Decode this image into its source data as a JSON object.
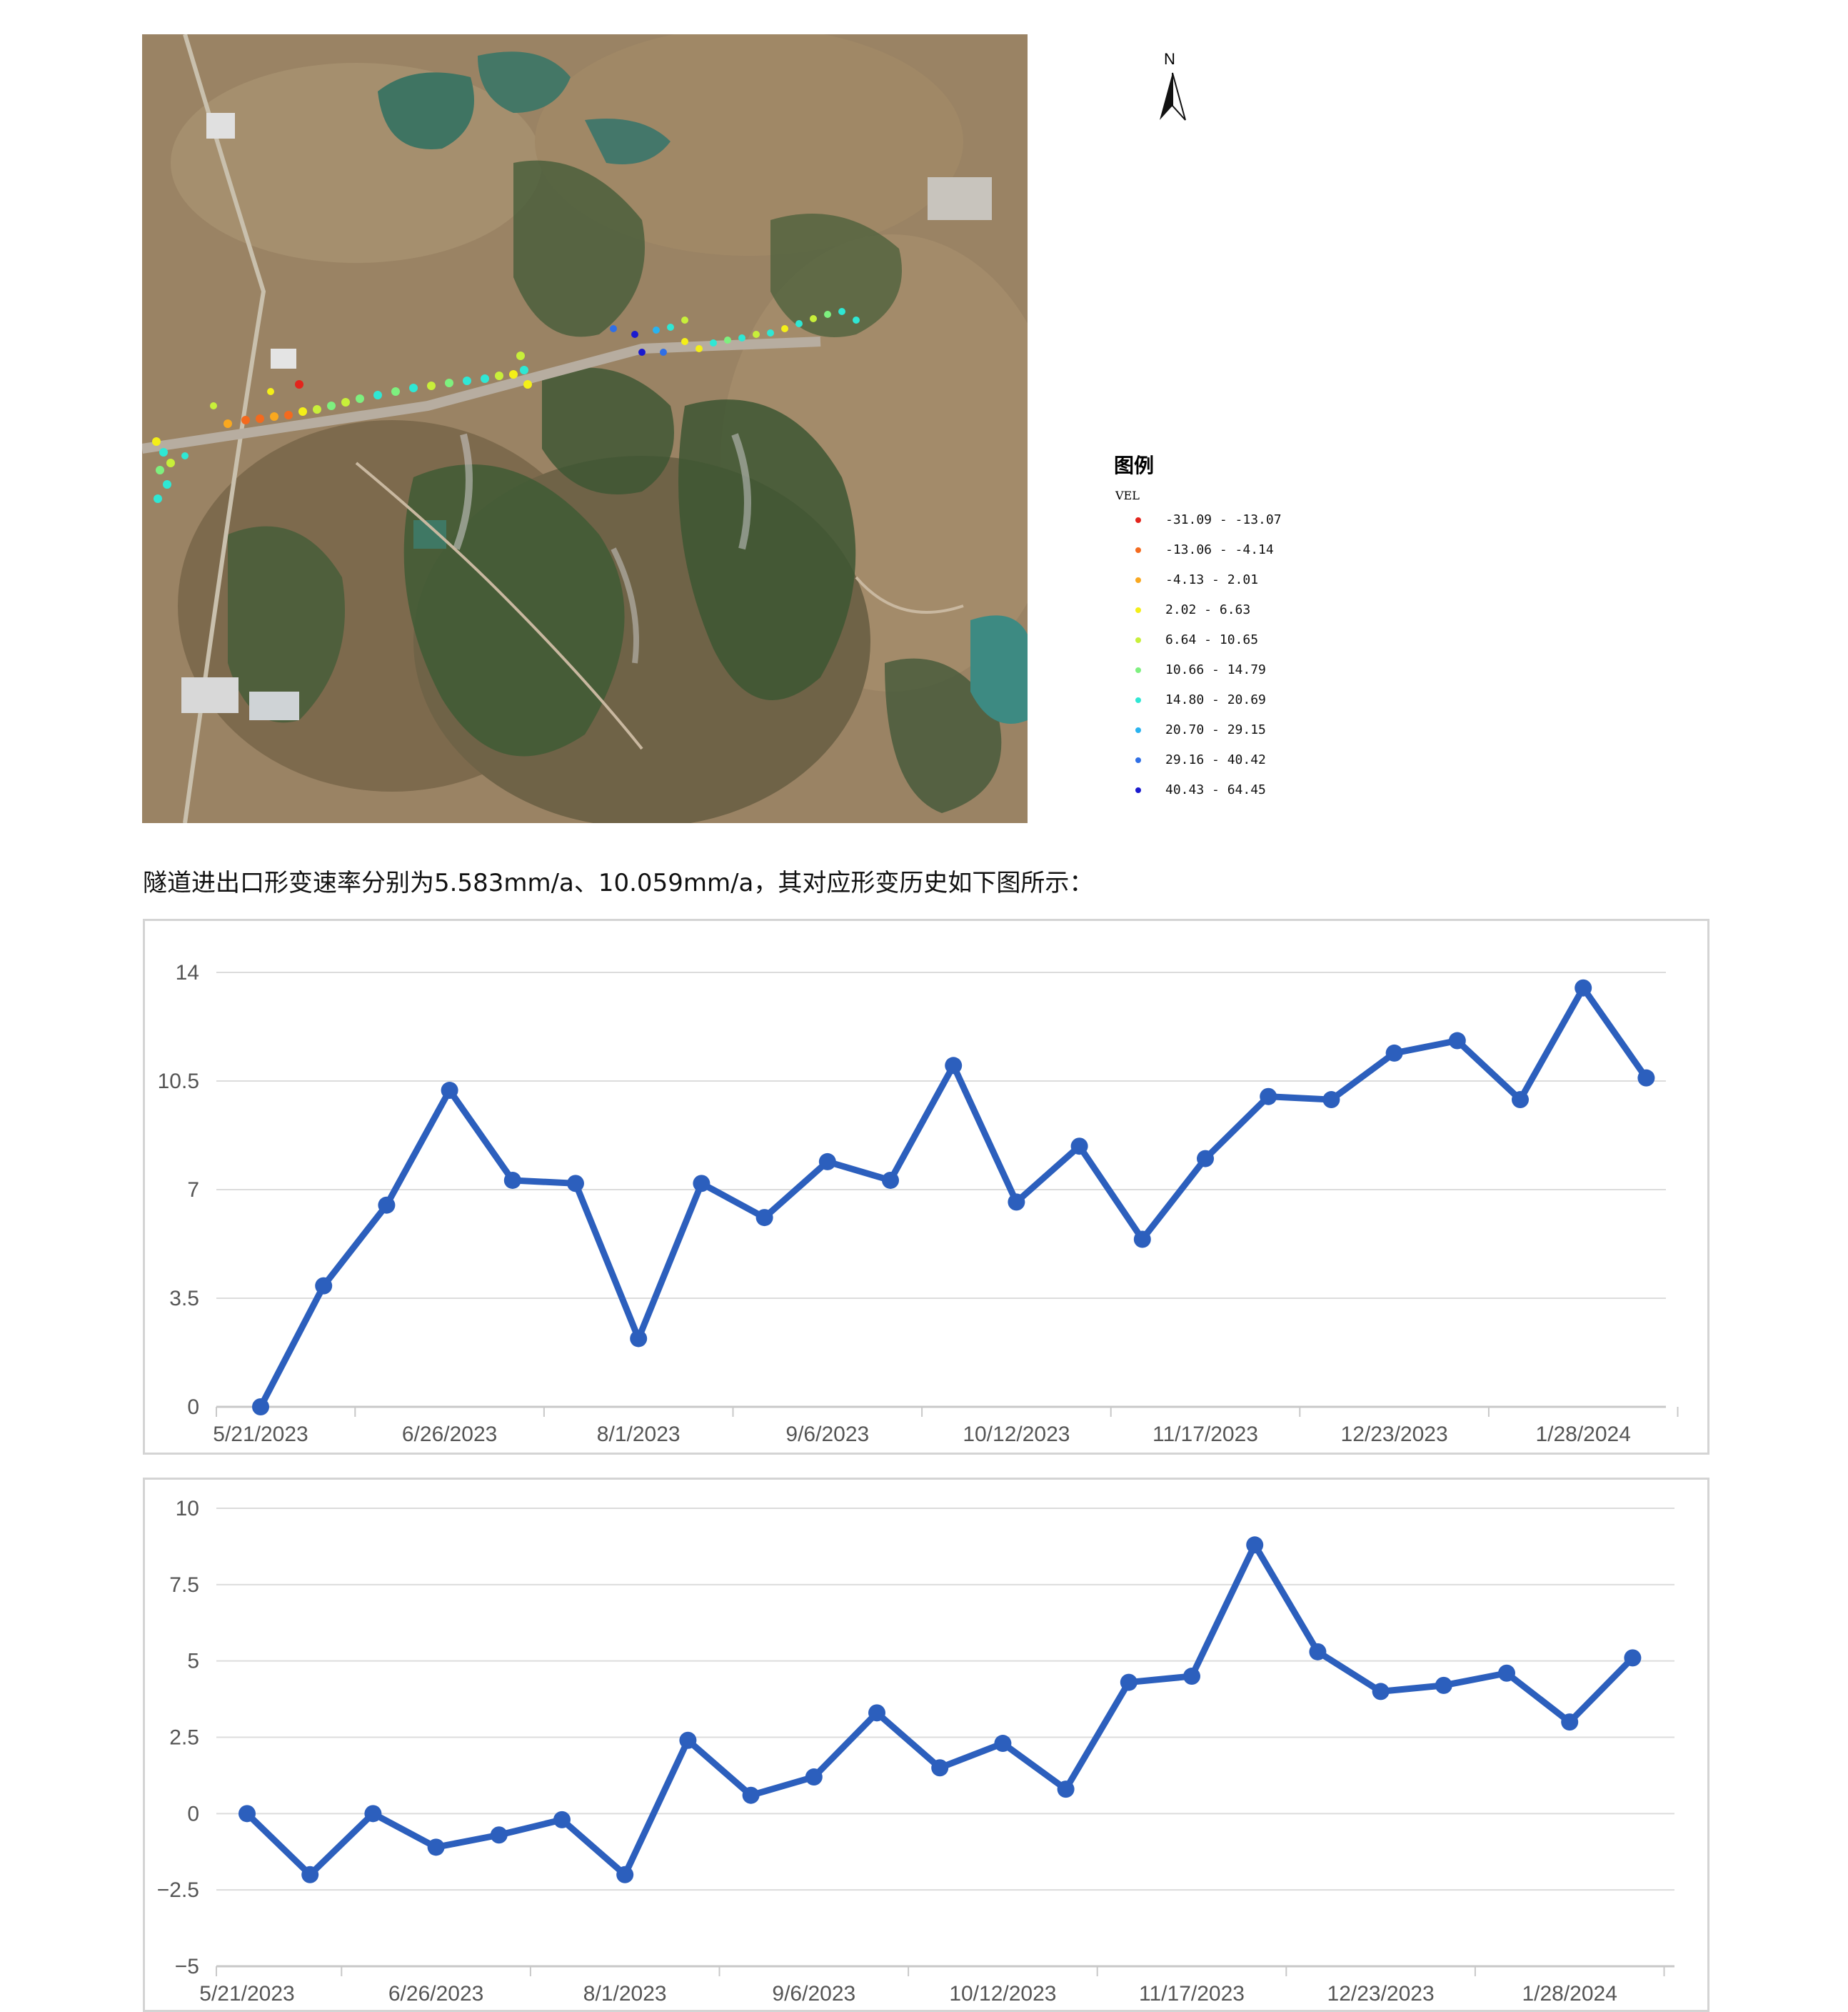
{
  "compass": {
    "north_label": "N"
  },
  "legend": {
    "title": "图例",
    "field": "VEL",
    "items": [
      {
        "label": "-31.09 - -13.07",
        "color": "#e3241c"
      },
      {
        "label": "-13.06 - -4.14",
        "color": "#f46a1e"
      },
      {
        "label": "-4.13 - 2.01",
        "color": "#f9a81f"
      },
      {
        "label": "2.02 - 6.63",
        "color": "#f4ef18"
      },
      {
        "label": "6.64 - 10.65",
        "color": "#c8ef3a"
      },
      {
        "label": "10.66 - 14.79",
        "color": "#7ef07f"
      },
      {
        "label": "14.80 - 20.69",
        "color": "#2fe7d4"
      },
      {
        "label": "20.70 - 29.15",
        "color": "#29b3f0"
      },
      {
        "label": "29.16 - 40.42",
        "color": "#2f6fe6"
      },
      {
        "label": "40.43 - 64.45",
        "color": "#1a1acf"
      }
    ]
  },
  "caption": "隧道进出口形变速率分别为5.583mm/a、10.059mm/a，其对应形变历史如下图所示：",
  "chart_data": [
    {
      "type": "line",
      "title": "",
      "xlabel": "",
      "ylabel": "",
      "ylim": [
        0,
        14
      ],
      "yticks": [
        "0",
        "3.5",
        "7",
        "10.5",
        "14"
      ],
      "xticks": [
        "5/21/2023",
        "6/26/2023",
        "8/1/2023",
        "9/6/2023",
        "10/12/2023",
        "11/17/2023",
        "12/23/2023",
        "1/28/2024"
      ],
      "grid": true,
      "color": "#2c5fbd",
      "values": [
        0,
        3.9,
        6.5,
        10.2,
        7.3,
        7.2,
        2.2,
        7.2,
        6.1,
        7.9,
        7.3,
        11.0,
        6.6,
        8.4,
        5.4,
        8.0,
        10.0,
        9.9,
        11.4,
        11.8,
        9.9,
        13.5,
        10.6
      ]
    },
    {
      "type": "line",
      "title": "",
      "xlabel": "",
      "ylabel": "",
      "ylim": [
        -5,
        10
      ],
      "yticks": [
        "−5",
        "−2.5",
        "0",
        "2.5",
        "5",
        "7.5",
        "10"
      ],
      "xticks": [
        "5/21/2023",
        "6/26/2023",
        "8/1/2023",
        "9/6/2023",
        "10/12/2023",
        "11/17/2023",
        "12/23/2023",
        "1/28/2024"
      ],
      "grid": true,
      "color": "#2c5fbd",
      "values": [
        0,
        -2.0,
        0,
        -1.1,
        -0.7,
        -0.2,
        -2.0,
        2.4,
        0.6,
        1.2,
        3.3,
        1.5,
        2.3,
        0.8,
        4.3,
        4.5,
        8.8,
        5.3,
        4.0,
        4.2,
        4.6,
        3.0,
        5.1
      ]
    }
  ]
}
